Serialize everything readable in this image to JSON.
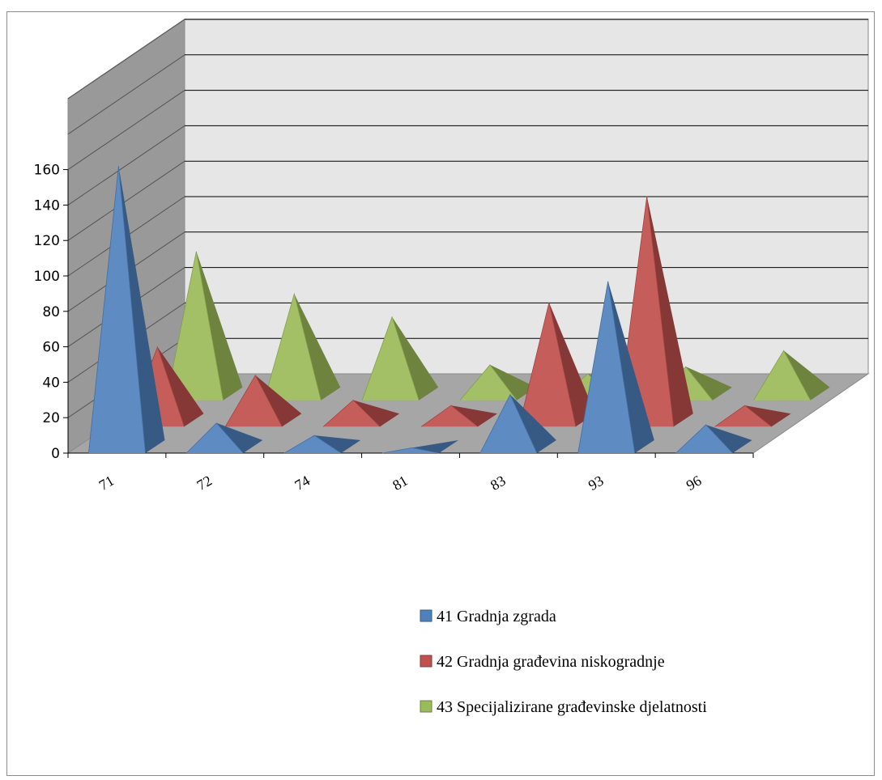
{
  "chart_data": {
    "type": "bar",
    "shape": "3d-pyramid",
    "categories": [
      "71",
      "72",
      "74",
      "81",
      "83",
      "93",
      "96"
    ],
    "series": [
      {
        "name": "41 Gradnja zgrada",
        "color": "#4f81bd",
        "values": [
          162,
          17,
          10,
          3,
          33,
          97,
          16
        ]
      },
      {
        "name": "42 Gradnja građevina niskogradnje",
        "color": "#c0504d",
        "values": [
          45,
          29,
          15,
          12,
          70,
          130,
          12
        ]
      },
      {
        "name": "43 Specijalizirane građevinske djelatnosti",
        "color": "#9bbb59",
        "values": [
          84,
          60,
          47,
          20,
          15,
          19,
          28
        ]
      }
    ],
    "yticks": [
      "0",
      "20",
      "40",
      "60",
      "80",
      "100",
      "120",
      "140",
      "160"
    ],
    "ylim": [
      0,
      160
    ],
    "grid": true,
    "legend_position": "bottom-right"
  }
}
